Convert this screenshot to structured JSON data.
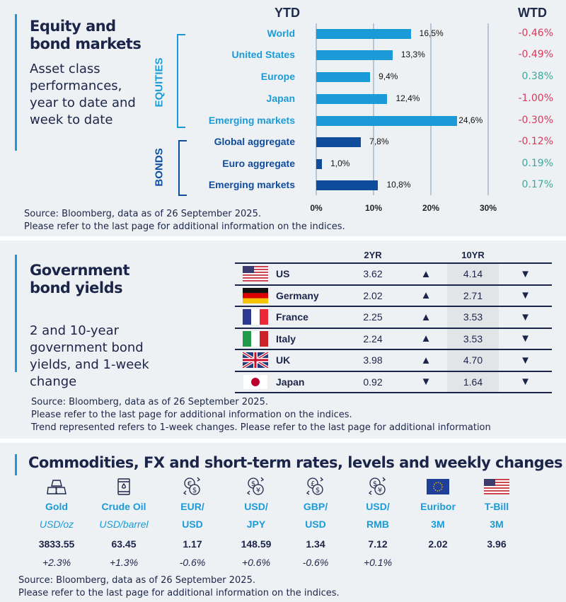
{
  "section1": {
    "title": "Equity and bond markets",
    "subtitle": "Asset class performances, year to date and week to date",
    "ytd_header": "YTD",
    "wtd_header": "WTD",
    "group_equities": "EQUITIES",
    "group_bonds": "BONDS",
    "source": "Source: Bloomberg, data as of 26 September 2025.",
    "note": "Please refer to the last page for additional information on the indices."
  },
  "chart_data": {
    "type": "bar",
    "orientation": "horizontal",
    "categories": [
      "World",
      "United States",
      "Europe",
      "Japan",
      "Emerging  markets",
      "Global  aggregate",
      "Euro  aggregate",
      "Emerging  markets"
    ],
    "groups": [
      "EQUITIES",
      "EQUITIES",
      "EQUITIES",
      "EQUITIES",
      "EQUITIES",
      "BONDS",
      "BONDS",
      "BONDS"
    ],
    "values": [
      16.5,
      13.3,
      9.4,
      12.4,
      24.6,
      7.8,
      1.0,
      10.8
    ],
    "value_labels": [
      "16,5%",
      "13,3%",
      "9,4%",
      "12,4%",
      "24,6%",
      "7,8%",
      "1,0%",
      "10,8%"
    ],
    "wtd": [
      "-0.46%",
      "-0.49%",
      "0.38%",
      "-1.00%",
      "-0.30%",
      "-0.12%",
      "0.19%",
      "0.17%"
    ],
    "xlim": [
      0,
      30
    ],
    "xticks": [
      "0%",
      "10%",
      "20%",
      "30%"
    ],
    "grid": true,
    "colors": {
      "equities": "#1a9bd7",
      "bonds": "#0f4c9c",
      "negative": "#d6395a",
      "positive": "#3aa89a"
    }
  },
  "section2": {
    "title": "Government bond yields",
    "subtitle": "2 and 10-year government bond yields, and 1-week change",
    "col_2yr": "2YR",
    "col_10yr": "10YR",
    "rows": [
      {
        "country": "US",
        "flag": "us",
        "y2": "3.62",
        "t2": "up",
        "y10": "4.14",
        "t10": "down"
      },
      {
        "country": "Germany",
        "flag": "de",
        "y2": "2.02",
        "t2": "up",
        "y10": "2.71",
        "t10": "down"
      },
      {
        "country": "France",
        "flag": "fr",
        "y2": "2.25",
        "t2": "up",
        "y10": "3.53",
        "t10": "down"
      },
      {
        "country": "Italy",
        "flag": "it",
        "y2": "2.24",
        "t2": "up",
        "y10": "3.53",
        "t10": "down"
      },
      {
        "country": "UK",
        "flag": "uk",
        "y2": "3.98",
        "t2": "up",
        "y10": "4.70",
        "t10": "down"
      },
      {
        "country": "Japan",
        "flag": "jp",
        "y2": "0.92",
        "t2": "down",
        "y10": "1.64",
        "t10": "down"
      }
    ],
    "source": "Source: Bloomberg, data as of 26 September 2025.",
    "note": "Please refer to the last page for additional information on the indices.",
    "note2": "Trend represented refers to 1-week changes. Please refer to the last page for additional information"
  },
  "section3": {
    "title": "Commodities, FX and short-term rates, levels and weekly changes",
    "items": [
      {
        "icon": "gold-bars-icon",
        "label": "Gold",
        "sub": "USD/oz",
        "value": "3833.55",
        "change": "+2.3%"
      },
      {
        "icon": "oil-barrel-icon",
        "label": "Crude Oil",
        "sub": "USD/barrel",
        "value": "63.45",
        "change": "+1.3%"
      },
      {
        "icon": "euro-dollar-exchange-icon",
        "label": "EUR/",
        "sub": "USD",
        "value": "1.17",
        "change": "-0.6%"
      },
      {
        "icon": "dollar-yen-exchange-icon",
        "label": "USD/",
        "sub": "JPY",
        "value": "148.59",
        "change": "+0.6%"
      },
      {
        "icon": "pound-dollar-exchange-icon",
        "label": "GBP/",
        "sub": "USD",
        "value": "1.34",
        "change": "-0.6%"
      },
      {
        "icon": "dollar-yuan-exchange-icon",
        "label": "USD/",
        "sub": "RMB",
        "value": "7.12",
        "change": "+0.1%"
      },
      {
        "icon": "eu-flag-icon",
        "label": "Euribor",
        "sub": "3M",
        "value": "2.02",
        "change": ""
      },
      {
        "icon": "us-flag-icon",
        "label": "T-Bill",
        "sub": "3M",
        "value": "3.96",
        "change": ""
      }
    ],
    "source": "Source: Bloomberg, data as of 26 September 2025.",
    "note": "Please refer to the last page for additional information on the indices."
  }
}
